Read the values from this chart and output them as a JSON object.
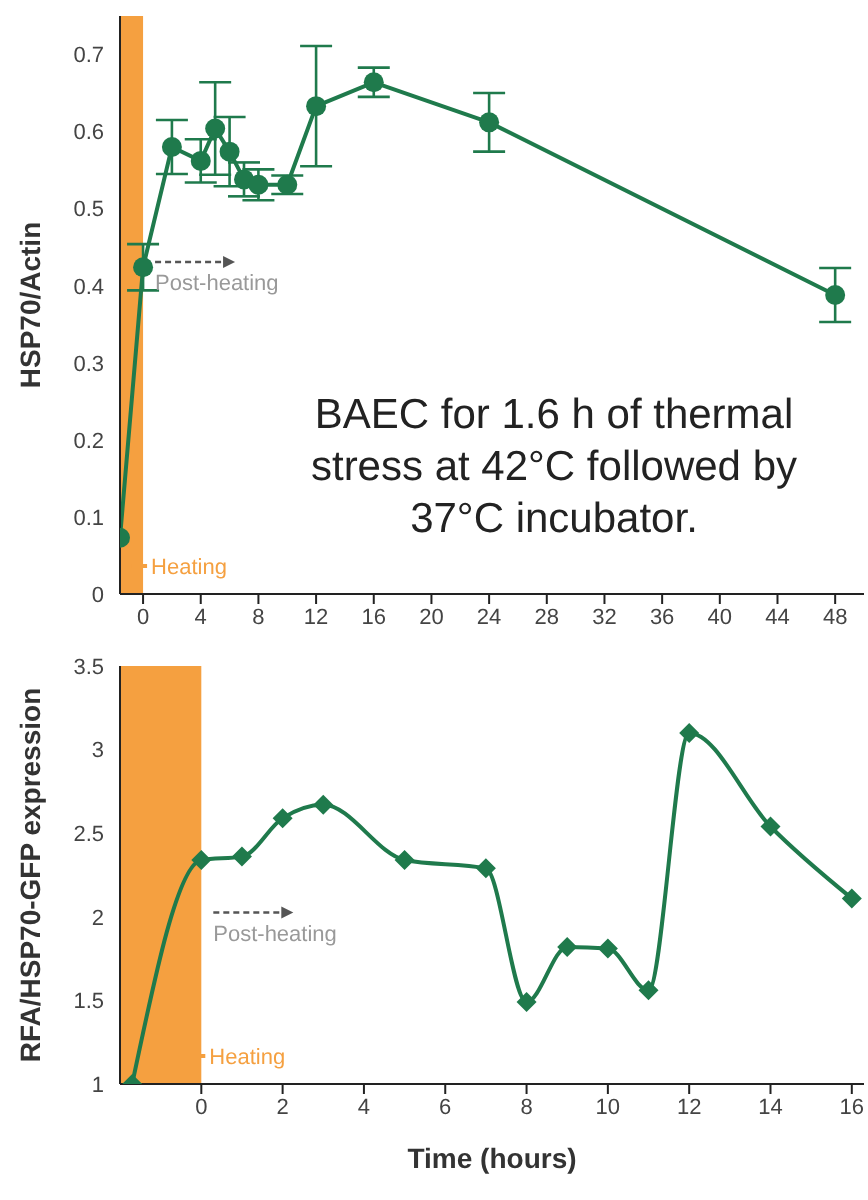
{
  "chart_data": [
    {
      "type": "line",
      "ylabel": "HSP70/Actin",
      "x": [
        -1.6,
        0,
        2,
        4,
        5,
        6,
        7,
        8,
        10,
        12,
        16,
        24,
        48
      ],
      "series": [
        {
          "color": "#1f7a4c",
          "values": [
            0.073,
            0.424,
            0.58,
            0.562,
            0.604,
            0.574,
            0.538,
            0.531,
            0.531,
            0.633,
            0.664,
            0.612,
            0.388
          ],
          "errors": [
            null,
            0.03,
            0.035,
            0.028,
            0.06,
            0.045,
            0.022,
            0.02,
            0.012,
            0.078,
            0.019,
            0.038,
            0.035
          ]
        }
      ],
      "xlim": [
        -1.6,
        50
      ],
      "xticks": [
        0,
        4,
        8,
        12,
        16,
        20,
        24,
        28,
        32,
        36,
        40,
        44,
        48
      ],
      "ylim": [
        0,
        0.75
      ],
      "yticks": [
        0,
        0.1,
        0.2,
        0.3,
        0.4,
        0.5,
        0.6,
        0.7
      ],
      "marker": "circle",
      "line_style": "solid",
      "grid": false,
      "legend": false,
      "bands": [
        {
          "axis": "x",
          "from": -1.6,
          "to": 0,
          "label": "Heating",
          "color": "#f5a040"
        }
      ],
      "annotations": [
        {
          "text": "Post-heating",
          "x": 0,
          "y": 0.41
        },
        "BAEC for 1.6 h of thermal stress at 42°C followed  by 37°C incubator."
      ]
    },
    {
      "type": "line",
      "xlabel": "Time (hours)",
      "ylabel": "RFA/HSP70-GFP expression",
      "x": [
        -1.7,
        0,
        1,
        2,
        3,
        5,
        7,
        8,
        9,
        10,
        11,
        12,
        14,
        16
      ],
      "series": [
        {
          "color": "#1f7a4c",
          "values": [
            1.0,
            2.34,
            2.36,
            2.59,
            2.67,
            2.34,
            2.29,
            1.49,
            1.82,
            1.81,
            1.56,
            3.1,
            2.54,
            2.11
          ]
        }
      ],
      "xlim": [
        -2,
        16.3
      ],
      "xticks": [
        0,
        2,
        4,
        6,
        8,
        10,
        12,
        14,
        16
      ],
      "ylim": [
        1,
        3.5
      ],
      "yticks": [
        1,
        1.5,
        2,
        2.5,
        3,
        3.5
      ],
      "marker": "diamond",
      "line_style": "solid",
      "grid": false,
      "legend": false,
      "bands": [
        {
          "axis": "x",
          "from": -2,
          "to": 0,
          "label": "Heating",
          "color": "#f5a040"
        }
      ],
      "annotations": [
        {
          "text": "Post-heating",
          "x": 0,
          "y": 1.93
        }
      ]
    }
  ]
}
